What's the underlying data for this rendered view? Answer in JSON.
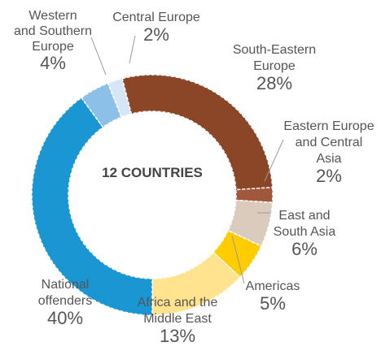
{
  "chart_data": {
    "type": "pie",
    "center_label": "12 COUNTRIES",
    "slices": [
      {
        "name": "Central Europe",
        "name_lines": [
          "Central Europe"
        ],
        "value": 2,
        "value_label": "2%",
        "color": "#d6e6f4"
      },
      {
        "name": "South-Eastern Europe",
        "name_lines": [
          "South-Eastern",
          "Europe"
        ],
        "value": 28,
        "value_label": "28%",
        "color": "#8b4627"
      },
      {
        "name": "Eastern Europe and Central Asia",
        "name_lines": [
          "Eastern Europe",
          "and Central",
          "Asia"
        ],
        "value": 2,
        "value_label": "2%",
        "color": "#a0573b"
      },
      {
        "name": "East and South Asia",
        "name_lines": [
          "East and",
          "South Asia"
        ],
        "value": 6,
        "value_label": "6%",
        "color": "#dacbbd"
      },
      {
        "name": "Americas",
        "name_lines": [
          "Americas"
        ],
        "value": 5,
        "value_label": "5%",
        "color": "#ffcc00"
      },
      {
        "name": "Africa and the Middle East",
        "name_lines": [
          "Africa and the",
          "Middle East"
        ],
        "value": 13,
        "value_label": "13%",
        "color": "#ffe38f"
      },
      {
        "name": "National offenders",
        "name_lines": [
          "National",
          "offenders"
        ],
        "value": 40,
        "value_label": "40%",
        "color": "#1a96d3"
      },
      {
        "name": "Western and Southern Europe",
        "name_lines": [
          "Western",
          "and Southern",
          "Europe"
        ],
        "value": 4,
        "value_label": "4%",
        "color": "#8cc0e8"
      }
    ]
  }
}
